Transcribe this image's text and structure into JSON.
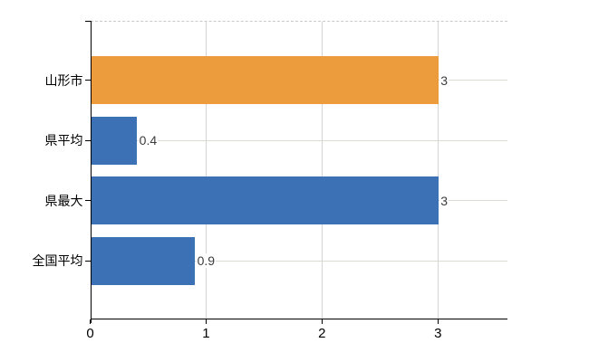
{
  "chart_data": {
    "type": "bar",
    "orientation": "horizontal",
    "categories": [
      "山形市",
      "県平均",
      "県最大",
      "全国平均"
    ],
    "values": [
      3,
      0.4,
      3,
      0.9
    ],
    "value_labels": [
      "3",
      "0.4",
      "3",
      "0.9"
    ],
    "series": [
      {
        "name": "highlighted-city",
        "color": "#EC9C3C",
        "indexes": [
          0
        ]
      },
      {
        "name": "reference",
        "color": "#3C71B5",
        "indexes": [
          1,
          2,
          3
        ]
      }
    ],
    "bar_colors": [
      "#EC9C3C",
      "#3C71B5",
      "#3C71B5",
      "#3C71B5"
    ],
    "x_ticks": [
      0,
      1,
      2,
      3
    ],
    "x_tick_labels": [
      "0",
      "1",
      "2",
      "3"
    ],
    "xlim": [
      0,
      3.6
    ],
    "grid": true,
    "legend": false
  },
  "colors": {
    "background": "#ffffff",
    "axis": "#000000",
    "grid_horizontal": "#d8ddd2",
    "grid_vertical": "#d4d4d4",
    "top_border": "#c9c9c9",
    "value_label_text": "#3c3c3c",
    "tick_label_text": "#000000"
  }
}
